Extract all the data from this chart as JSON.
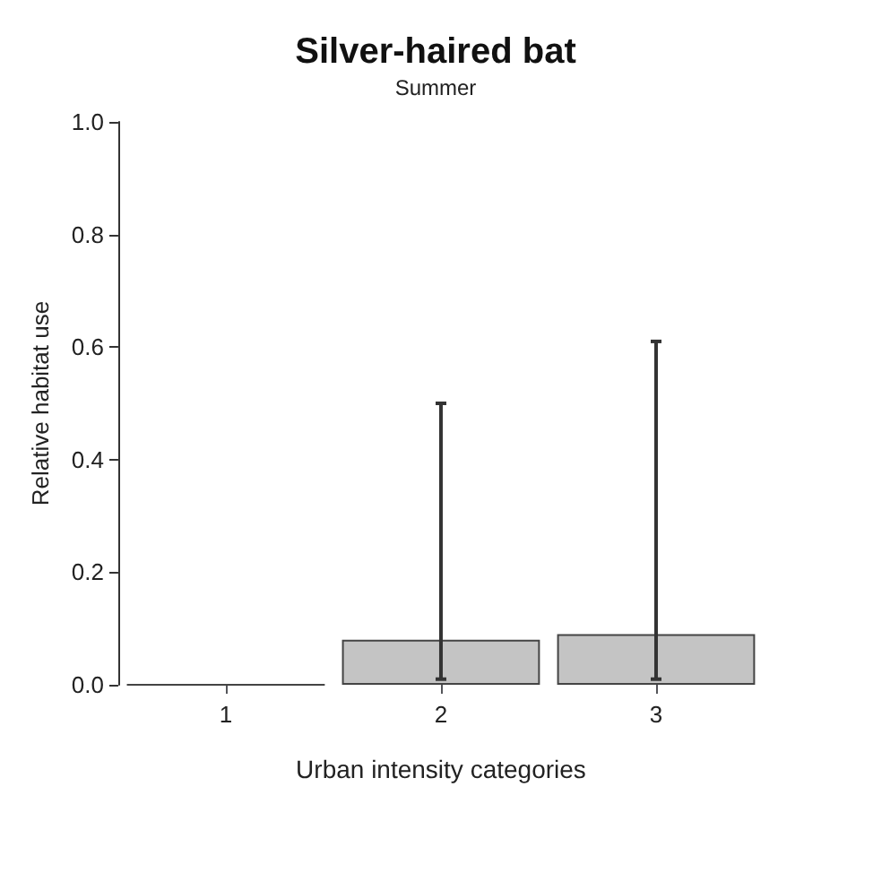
{
  "chart_data": {
    "type": "bar",
    "title": "Silver-haired bat",
    "subtitle": "Summer",
    "xlabel": "Urban intensity categories",
    "ylabel": "Relative habitat use",
    "categories": [
      "1",
      "2",
      "3"
    ],
    "series": [
      {
        "color": "#c4c4c4",
        "values": [
          0,
          0.08,
          0.09
        ],
        "errors": [
          null,
          [
            0.01,
            0.5
          ],
          [
            0.01,
            0.61
          ]
        ]
      }
    ],
    "ylim": [
      0,
      1
    ],
    "yticks": [
      {
        "value": 0,
        "label": "0.0"
      },
      {
        "value": 0.2,
        "label": "0.2"
      },
      {
        "value": 0.4,
        "label": "0.4"
      },
      {
        "value": 0.6,
        "label": "0.6"
      },
      {
        "value": 0.8,
        "label": "0.8"
      },
      {
        "value": 1,
        "label": "1.0"
      }
    ],
    "data_labels": false
  }
}
